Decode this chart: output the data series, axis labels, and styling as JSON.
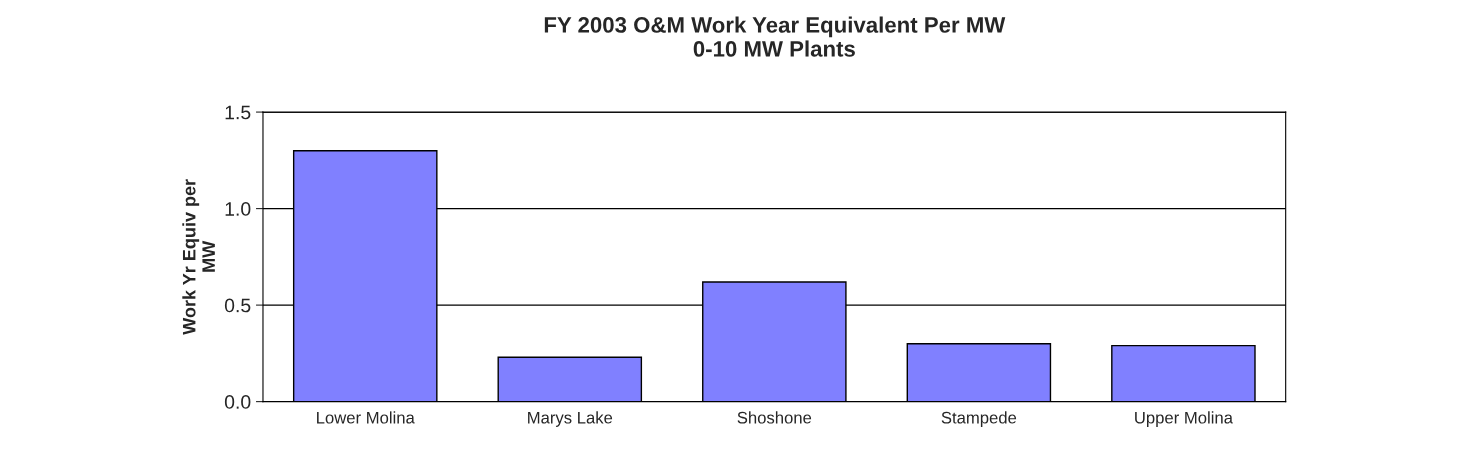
{
  "chart_data": {
    "type": "bar",
    "title": "FY 2003 O&M Work Year Equivalent Per MW\n0-10 MW Plants",
    "ylabel": "Work Yr Equiv per\nMW",
    "categories": [
      "Lower Molina",
      "Marys Lake",
      "Shoshone",
      "Stampede",
      "Upper Molina"
    ],
    "values": [
      1.3,
      0.23,
      0.62,
      0.3,
      0.29
    ],
    "color": "#8080ff",
    "ylim": [
      0,
      1.5
    ],
    "yticks": [
      {
        "value": 0,
        "label": "0.0"
      },
      {
        "value": 0.5,
        "label": "0.5"
      },
      {
        "value": 1.0,
        "label": "1.0"
      },
      {
        "value": 1.5,
        "label": "1.5"
      }
    ],
    "grid": "y"
  }
}
